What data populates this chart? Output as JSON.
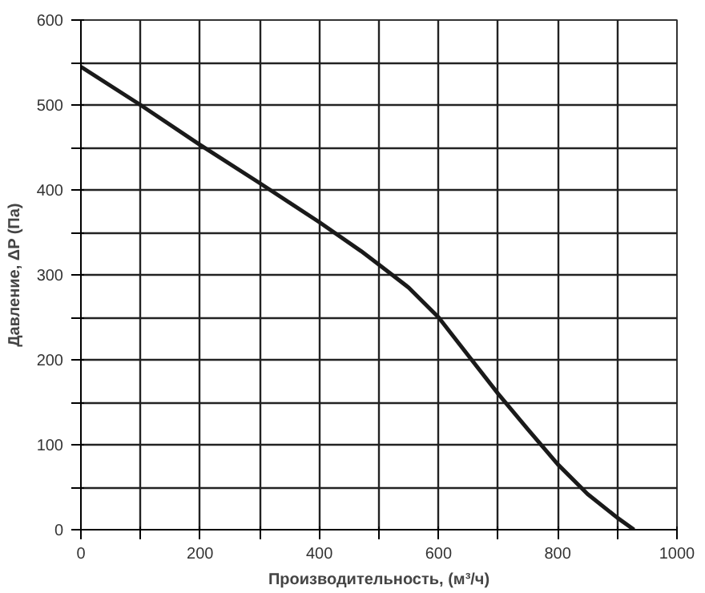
{
  "chart_data": {
    "type": "line",
    "xlabel": "Производительность, (м³/ч)",
    "ylabel": "Давление, ΔP (Па)",
    "x": [
      0,
      100,
      200,
      300,
      400,
      470,
      500,
      550,
      600,
      650,
      700,
      750,
      800,
      850,
      900,
      928
    ],
    "series": [
      {
        "color": "#1a1a1a",
        "values": [
          545,
          500,
          453,
          408,
          362,
          328,
          312,
          285,
          250,
          205,
          160,
          118,
          77,
          42,
          14,
          0
        ]
      }
    ],
    "xlim": [
      0,
      1000
    ],
    "ylim": [
      0,
      600
    ],
    "xticks": [
      0,
      {
        "value": 100,
        "label": null
      },
      200,
      {
        "value": 300,
        "label": null
      },
      400,
      {
        "value": 500,
        "label": null
      },
      600,
      {
        "value": 700,
        "label": null
      },
      800,
      {
        "value": 900,
        "label": null
      },
      1000
    ],
    "yticks": [
      0,
      {
        "value": 50,
        "label": null
      },
      100,
      {
        "value": 150,
        "label": null
      },
      200,
      {
        "value": 250,
        "label": null
      },
      300,
      {
        "value": 350,
        "label": null
      },
      400,
      {
        "value": 450,
        "label": null
      },
      500,
      {
        "value": 550,
        "label": null
      },
      600
    ],
    "grid": true,
    "marker": "none",
    "line_style": "solid"
  }
}
